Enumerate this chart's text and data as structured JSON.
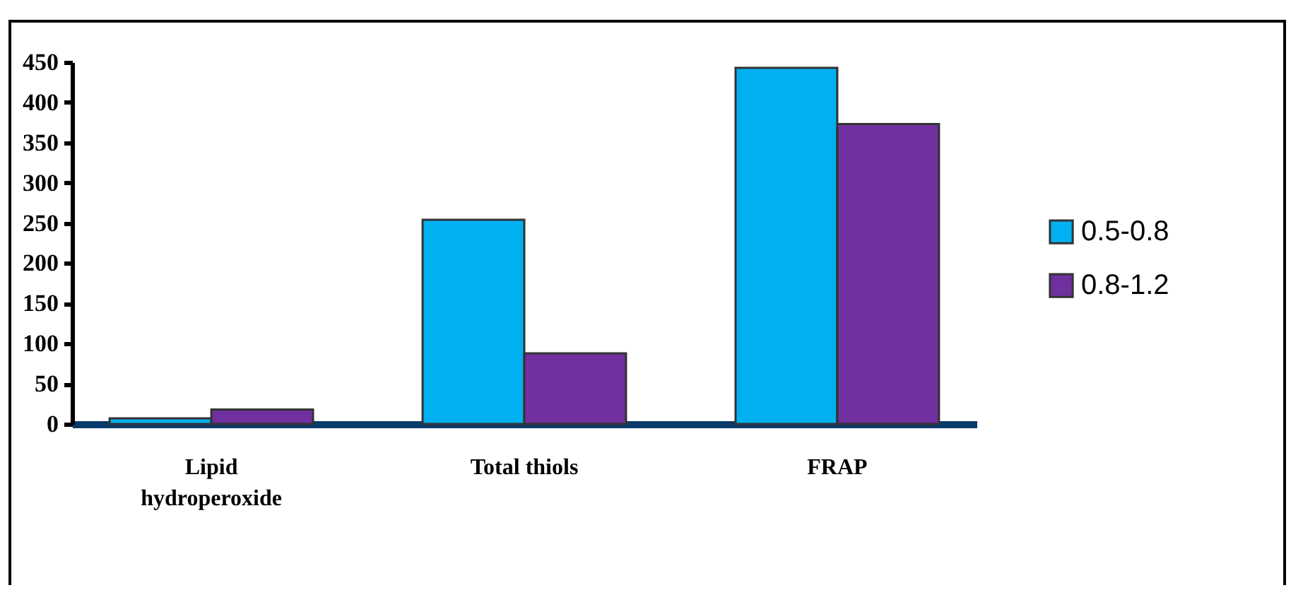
{
  "chart_data": {
    "type": "bar",
    "categories": [
      "Lipid hydroperoxide",
      "Total thiols",
      "FRAP"
    ],
    "series": [
      {
        "name": "0.5-0.8",
        "color": "#00b0f0",
        "values": [
          7,
          254,
          443
        ]
      },
      {
        "name": "0.8-1.2",
        "color": "#7030a0",
        "values": [
          18,
          88,
          373
        ]
      }
    ],
    "ylim": [
      0,
      450
    ],
    "yticks": [
      0,
      50,
      100,
      150,
      200,
      250,
      300,
      350,
      400,
      450
    ],
    "grid": false,
    "legend": "right"
  }
}
